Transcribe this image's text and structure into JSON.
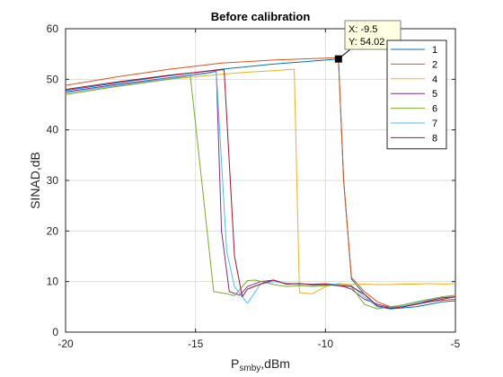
{
  "chart_data": {
    "type": "line",
    "title": "Before calibration",
    "xlabel": "P",
    "xlabel_sub": "smby",
    "xlabel_suffix": ",dBm",
    "ylabel": "SINAD,dB",
    "xlim": [
      -20,
      -5
    ],
    "ylim": [
      0,
      60
    ],
    "xticks": [
      -20,
      -15,
      -10,
      -5
    ],
    "yticks": [
      0,
      10,
      20,
      30,
      40,
      50,
      60
    ],
    "grid": true,
    "legend_position": "top-right",
    "series": [
      {
        "name": "1",
        "color": "#0072bd",
        "x": [
          -20,
          -18,
          -16,
          -14,
          -12,
          -10,
          -9.5,
          -9.3,
          -9.0,
          -8.5,
          -8.0,
          -7.5,
          -7.0,
          -6.5,
          -6.0,
          -5.5,
          -5.0
        ],
        "y": [
          47.8,
          49.3,
          50.7,
          52.0,
          53.0,
          53.8,
          54.0,
          30.0,
          10.5,
          7.5,
          5.0,
          4.6,
          4.8,
          5.0,
          5.5,
          6.0,
          6.2
        ]
      },
      {
        "name": "2",
        "color": "#d95319",
        "x": [
          -20,
          -18,
          -16,
          -14,
          -12,
          -10,
          -9.5,
          -9.3,
          -9.0,
          -8.5,
          -8.0,
          -7.5,
          -7.0,
          -6.5,
          -6.0,
          -5.5,
          -5.0
        ],
        "y": [
          48.8,
          50.5,
          52.0,
          53.2,
          53.8,
          54.2,
          54.3,
          30.0,
          10.8,
          8.0,
          6.0,
          5.0,
          5.0,
          5.6,
          6.0,
          6.3,
          6.5
        ]
      },
      {
        "name": "4",
        "color": "#edb120",
        "x": [
          -20,
          -18,
          -16,
          -14,
          -13,
          -12,
          -11.2,
          -11.0,
          -10.5,
          -10.0,
          -9.5,
          -9.0,
          -8.5,
          -8.0,
          -7.5,
          -7.0,
          -6.5,
          -6.0,
          -5.5,
          -5.0
        ],
        "y": [
          47.0,
          48.6,
          50.0,
          51.0,
          51.4,
          51.7,
          52.0,
          7.8,
          7.6,
          9.0,
          9.6,
          9.4,
          9.5,
          9.4,
          9.4,
          9.5,
          9.5,
          9.6,
          9.5,
          9.6
        ]
      },
      {
        "name": "5",
        "color": "#7e2f8e",
        "x": [
          -20,
          -18,
          -16,
          -14.5,
          -14.2,
          -14.0,
          -13.7,
          -13.3,
          -13.0,
          -12.5,
          -12.0,
          -11.5,
          -11.0,
          -10.5,
          -10.0,
          -9.5,
          -9.3,
          -9.0,
          -8.5,
          -8.0,
          -7.5,
          -7.0,
          -6.5,
          -6.0,
          -5.5,
          -5.0
        ],
        "y": [
          47.5,
          49.0,
          50.3,
          51.3,
          51.6,
          20.0,
          8.0,
          7.3,
          9.0,
          10.0,
          10.3,
          9.5,
          9.6,
          9.3,
          9.4,
          9.2,
          9.0,
          8.5,
          6.5,
          5.5,
          4.9,
          5.0,
          5.5,
          6.0,
          6.5,
          7.0
        ]
      },
      {
        "name": "6",
        "color": "#77ac30",
        "x": [
          -20,
          -18,
          -16,
          -15.2,
          -14.3,
          -13.8,
          -13.5,
          -13.0,
          -12.7,
          -12.0,
          -11.5,
          -11.0,
          -10.5,
          -10.0,
          -9.5,
          -9.0,
          -8.5,
          -8.0,
          -7.5,
          -7.0,
          -6.5,
          -6.0,
          -5.5,
          -5.0
        ],
        "y": [
          47.0,
          48.6,
          50.0,
          50.7,
          8.0,
          7.6,
          7.2,
          10.2,
          10.3,
          9.4,
          9.0,
          9.2,
          9.0,
          9.2,
          9.5,
          9.0,
          5.5,
          4.6,
          5.0,
          5.4,
          6.0,
          6.5,
          7.0,
          7.3
        ]
      },
      {
        "name": "7",
        "color": "#4dbeee",
        "x": [
          -20,
          -18,
          -16,
          -14.5,
          -14.2,
          -13.8,
          -13.5,
          -13.0,
          -12.5,
          -12.0,
          -11.5,
          -11.0,
          -10.5,
          -10.0,
          -9.5,
          -9.0,
          -8.5,
          -8.0,
          -7.5,
          -7.0,
          -6.5,
          -6.0,
          -5.5,
          -5.0
        ],
        "y": [
          47.3,
          48.8,
          50.2,
          51.2,
          51.5,
          16.0,
          9.0,
          5.7,
          9.5,
          10.0,
          9.7,
          9.4,
          9.5,
          9.6,
          9.4,
          9.2,
          7.0,
          5.0,
          4.8,
          5.2,
          5.8,
          6.3,
          6.8,
          7.0
        ]
      },
      {
        "name": "8",
        "color": "#a2142f",
        "x": [
          -20,
          -18,
          -16,
          -14.2,
          -13.9,
          -13.5,
          -13.2,
          -13.0,
          -12.5,
          -12.0,
          -11.5,
          -11.0,
          -10.5,
          -10.0,
          -9.5,
          -9.0,
          -8.5,
          -8.0,
          -7.5,
          -7.0,
          -6.5,
          -6.0,
          -5.5,
          -5.0
        ],
        "y": [
          48.0,
          49.5,
          50.8,
          51.8,
          51.9,
          15.0,
          7.0,
          8.5,
          9.5,
          10.3,
          9.5,
          9.6,
          9.4,
          9.5,
          9.2,
          9.0,
          7.5,
          5.2,
          4.7,
          5.0,
          5.5,
          6.2,
          6.8,
          7.0
        ]
      }
    ],
    "datatip": {
      "x": -9.5,
      "y": 54.02,
      "x_label": "X: -9.5",
      "y_label": "Y: 54.02"
    }
  }
}
